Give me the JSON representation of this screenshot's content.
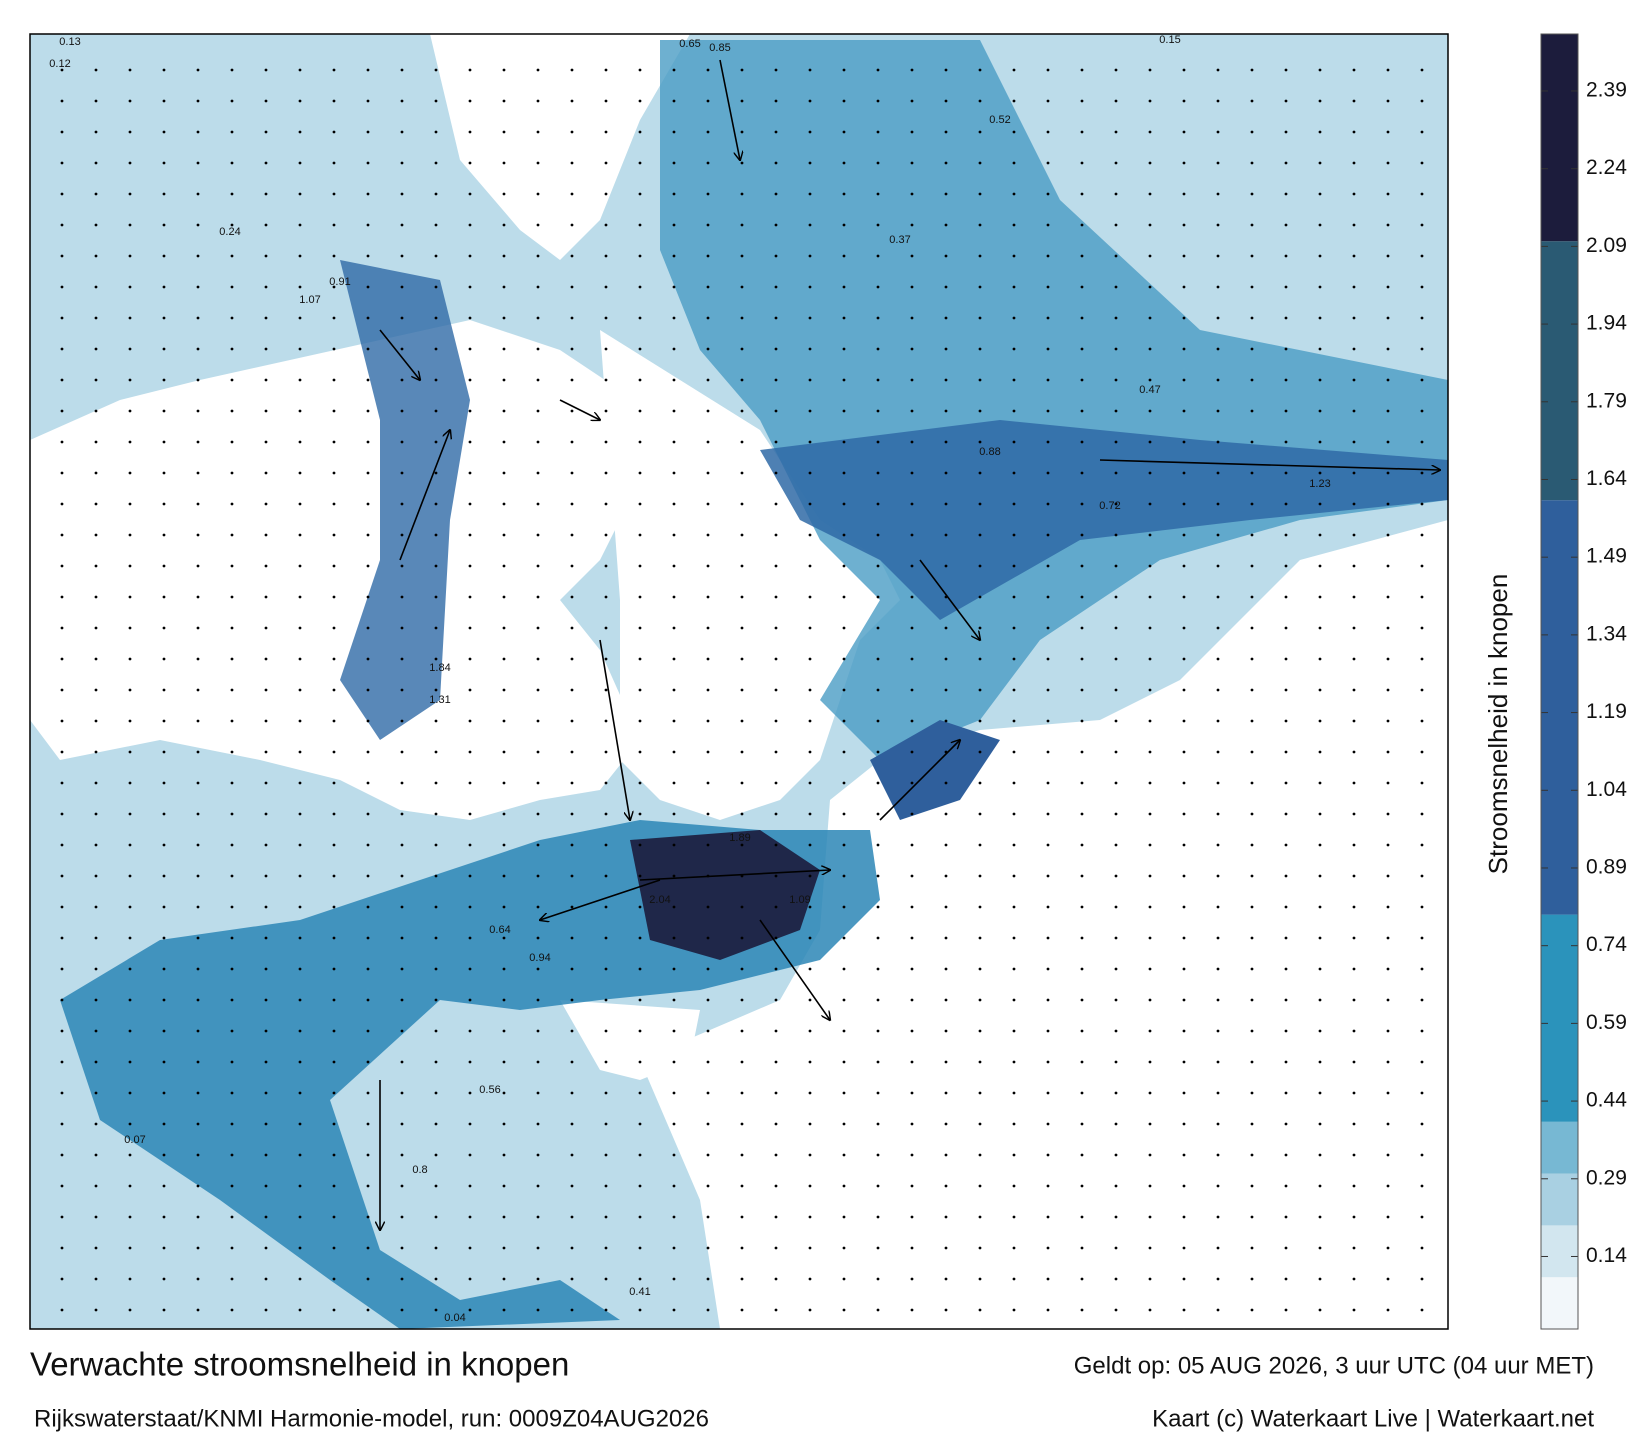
{
  "title": "Verwachte stroomsnelheid in knopen",
  "model": "Rijkswaterstaat/KNMI Harmonie-model, run: 0009Z04AUG2026",
  "valid": "Geldt op: 05 AUG 2026, 3 uur UTC (04 uur MET)",
  "credit": "Kaart (c) Waterkaart Live | Waterkaart.net",
  "colorbar": {
    "label": "Stroomsnelheid in knopen",
    "lim": [
      0,
      2.5
    ],
    "ticks": [
      0.14,
      0.29,
      0.44,
      0.59,
      0.74,
      0.89,
      1.04,
      1.19,
      1.34,
      1.49,
      1.64,
      1.79,
      1.94,
      2.09,
      2.24,
      2.39
    ],
    "bands": [
      {
        "from": 0,
        "to": 0.1,
        "color": "#f2f7fa"
      },
      {
        "from": 0.1,
        "to": 0.2,
        "color": "#d2e6ef"
      },
      {
        "from": 0.2,
        "to": 0.3,
        "color": "#a9d0e2"
      },
      {
        "from": 0.3,
        "to": 0.4,
        "color": "#77b8d3"
      },
      {
        "from": 0.4,
        "to": 0.8,
        "color": "#2b93bb"
      },
      {
        "from": 0.8,
        "to": 1.6,
        "color": "#2f5f9c"
      },
      {
        "from": 1.6,
        "to": 2.1,
        "color": "#2a5a73"
      },
      {
        "from": 2.1,
        "to": 2.5,
        "color": "#1c1c3c"
      }
    ]
  },
  "map_labels": [
    "0.13",
    "0.12",
    "0.24",
    "0.91",
    "1.07",
    "0.65",
    "0.85",
    "0.52",
    "0.37",
    "0.15",
    "0.47",
    "0.88",
    "1.23",
    "0.72",
    "1.84",
    "1.31",
    "2.04",
    "1.89",
    "0.94",
    "1.09",
    "0.64",
    "0.56",
    "0.8",
    "0.07",
    "0.41",
    "0.04"
  ]
}
